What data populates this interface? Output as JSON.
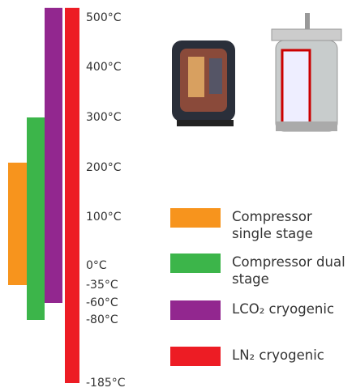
{
  "chart_data": {
    "type": "range",
    "ylim": [
      -185,
      520
    ],
    "yticks": [
      {
        "value": 500,
        "label": "500°C"
      },
      {
        "value": 400,
        "label": "400°C"
      },
      {
        "value": 300,
        "label": "300°C"
      },
      {
        "value": 200,
        "label": "200°C"
      },
      {
        "value": 100,
        "label": "100°C"
      },
      {
        "value": 0,
        "label": "0°C"
      },
      {
        "value": -35,
        "label": "-35°C"
      },
      {
        "value": -60,
        "label": "-60°C"
      },
      {
        "value": -80,
        "label": "-80°C"
      },
      {
        "value": -185,
        "label": "-185°C"
      }
    ],
    "series": [
      {
        "name": "Compressor single stage",
        "color": "#f7941d",
        "values": [
          -35,
          210
        ]
      },
      {
        "name": "Compressor dual stage",
        "color": "#3cb54a",
        "values": [
          -80,
          300
        ]
      },
      {
        "name": "LCO₂ cryogenic",
        "color": "#92278f",
        "values": [
          -60,
          520
        ]
      },
      {
        "name": "LN₂ cryogenic",
        "color": "#ed1c24",
        "values": [
          -185,
          520
        ]
      }
    ]
  }
}
